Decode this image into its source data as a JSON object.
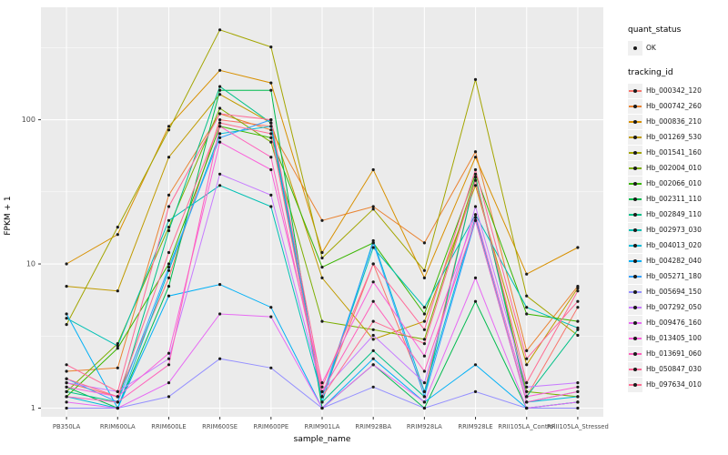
{
  "figure": {
    "panel_bg": "#EBEBEB",
    "grid_color": "#FFFFFF",
    "axis_text_color": "#4D4D4D",
    "tick_color": "#333333",
    "point_color": "#1A1A1A"
  },
  "axes": {
    "y_title": "FPKM + 1",
    "x_title": "sample_name",
    "y_tick_labels": [
      "1",
      "10",
      "100"
    ]
  },
  "legend": {
    "quant_title": "quant_status",
    "quant_ok_label": "OK",
    "tracking_title": "tracking_id"
  },
  "chart_data": {
    "type": "line",
    "title": "",
    "xlabel": "sample_name",
    "ylabel": "FPKM + 1",
    "y_scale": "log10",
    "ylim": [
      1,
      450
    ],
    "y_breaks": [
      1,
      10,
      100
    ],
    "grid": true,
    "legend_position": "right",
    "x_categories": [
      "PB350LA",
      "RRIM600LA",
      "RRIM600LE",
      "RRIM600SE",
      "RRIM600PE",
      "RRIM901LA",
      "RRIM928BA",
      "RRIM928LA",
      "RRIM928LE",
      "RRII105LA_Control",
      "RRII105LA_Stressed"
    ],
    "quant_status": "OK",
    "series": [
      {
        "name": "Hb_000342_120",
        "color": "#F8766D",
        "values": [
          1.5,
          1.2,
          8,
          100,
          90,
          1.2,
          10,
          1.3,
          40,
          1.2,
          5
        ]
      },
      {
        "name": "Hb_000742_260",
        "color": "#EA8331",
        "values": [
          1.8,
          1.9,
          30,
          110,
          85,
          20,
          25,
          14,
          60,
          2.5,
          7
        ]
      },
      {
        "name": "Hb_000836_210",
        "color": "#D89000",
        "values": [
          10,
          16,
          90,
          220,
          180,
          12,
          45,
          8,
          55,
          8.5,
          13
        ]
      },
      {
        "name": "Hb_001269_530",
        "color": "#C09B00",
        "values": [
          7,
          6.5,
          55,
          150,
          95,
          8,
          3,
          4,
          35,
          2,
          6.8
        ]
      },
      {
        "name": "Hb_001541_160",
        "color": "#A3A500",
        "values": [
          3.8,
          18,
          85,
          420,
          320,
          11,
          24,
          9,
          190,
          6,
          3.2
        ]
      },
      {
        "name": "Hb_002004_010",
        "color": "#7CAE00",
        "values": [
          1.3,
          2.8,
          18,
          120,
          70,
          4,
          3.5,
          3,
          40,
          1.3,
          1.2
        ]
      },
      {
        "name": "Hb_002066_010",
        "color": "#39B600",
        "values": [
          1.2,
          2.6,
          10,
          90,
          75,
          9.5,
          14,
          4.5,
          42,
          4.5,
          4
        ]
      },
      {
        "name": "Hb_002311_110",
        "color": "#00BB4E",
        "values": [
          1.4,
          1.0,
          7,
          160,
          160,
          1.0,
          2.0,
          1.0,
          5.5,
          1.0,
          1.1
        ]
      },
      {
        "name": "Hb_002849_110",
        "color": "#00C087",
        "values": [
          1.3,
          1.1,
          17,
          170,
          95,
          1.1,
          2.5,
          1.2,
          40,
          1.2,
          3.5
        ]
      },
      {
        "name": "Hb_002973_030",
        "color": "#00C0B4",
        "values": [
          4.2,
          2.7,
          20,
          35,
          25,
          1.2,
          13,
          5,
          22,
          5,
          3.6
        ]
      },
      {
        "name": "Hb_004013_020",
        "color": "#00BCD8",
        "values": [
          1.2,
          1.0,
          9,
          80,
          90,
          1.1,
          14.5,
          1.3,
          21,
          1.1,
          1.2
        ]
      },
      {
        "name": "Hb_004282_040",
        "color": "#00B0F6",
        "values": [
          4.5,
          1.0,
          6,
          7.2,
          5,
          1.0,
          2.2,
          1.1,
          2.0,
          1.0,
          1.1
        ]
      },
      {
        "name": "Hb_005271_180",
        "color": "#35A2FF",
        "values": [
          1.6,
          1.1,
          9.5,
          75,
          100,
          1.2,
          14,
          1.2,
          20,
          1.1,
          1.3
        ]
      },
      {
        "name": "Hb_005694_150",
        "color": "#9590FF",
        "values": [
          1.0,
          1.0,
          1.2,
          2.2,
          1.9,
          1.0,
          1.4,
          1.0,
          1.3,
          1.0,
          1.0
        ]
      },
      {
        "name": "Hb_007292_050",
        "color": "#C77CFF",
        "values": [
          1.5,
          1.3,
          2.2,
          42,
          30,
          1.3,
          3.2,
          1.5,
          25,
          1.4,
          1.5
        ]
      },
      {
        "name": "Hb_009476_160",
        "color": "#E76BF3",
        "values": [
          1.1,
          1.0,
          1.5,
          4.5,
          4.3,
          1.0,
          2.0,
          1.1,
          8,
          1.0,
          1.1
        ]
      },
      {
        "name": "Hb_013405_100",
        "color": "#FA62DB",
        "values": [
          1.4,
          1.2,
          2.4,
          70,
          45,
          1.5,
          7.5,
          2.3,
          22,
          1.2,
          1.4
        ]
      },
      {
        "name": "Hb_013691_060",
        "color": "#FF62BC",
        "values": [
          1.2,
          1.1,
          2.0,
          90,
          55,
          1.3,
          5.5,
          1.8,
          20,
          1.1,
          1.3
        ]
      },
      {
        "name": "Hb_050847_030",
        "color": "#FF6A98",
        "values": [
          2.0,
          1.3,
          25,
          110,
          100,
          1.4,
          10,
          3.5,
          45,
          2.2,
          5.5
        ]
      },
      {
        "name": "Hb_097634_010",
        "color": "#FF6C92",
        "values": [
          1.6,
          1.2,
          12,
          95,
          80,
          1.2,
          4,
          2.8,
          38,
          1.5,
          6.5
        ]
      }
    ]
  }
}
